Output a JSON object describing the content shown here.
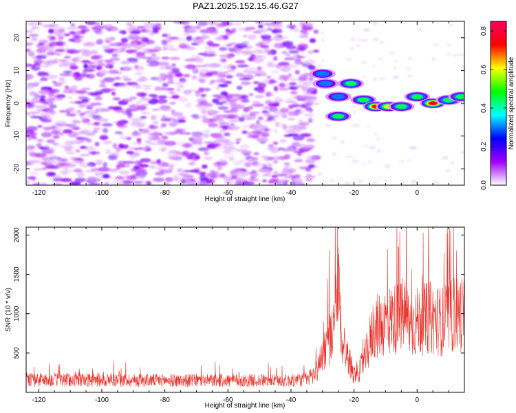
{
  "title": "PAZ1.2025.152.15.46.G27",
  "chart_data": [
    {
      "type": "heatmap",
      "xlabel": "Height of straight line (km)",
      "ylabel": "Frequency (Hz)",
      "xlim": [
        -124,
        15
      ],
      "ylim": [
        -25,
        25
      ],
      "x_ticks": [
        -120,
        -100,
        -80,
        -60,
        -40,
        -20,
        0
      ],
      "x_tick_labels": [
        "-120",
        "-100",
        "-80",
        "-60",
        "-40",
        "-20",
        "0"
      ],
      "y_ticks": [
        -20,
        -10,
        0,
        10,
        20
      ],
      "y_tick_labels": [
        "-20",
        "-10",
        "0",
        "10",
        "20"
      ],
      "colorbar": {
        "label": "Normalized spectral amplitude",
        "range": [
          0.0,
          0.85
        ],
        "ticks": [
          0.0,
          0.2,
          0.4,
          0.6,
          0.8
        ],
        "tick_labels": [
          "0.0",
          "0.2",
          "0.4",
          "0.6",
          "0.8"
        ]
      },
      "colormap": [
        "#ffffff",
        "#a000ff",
        "#0000ff",
        "#00ffff",
        "#00ff00",
        "#ffff00",
        "#ff0000",
        "#ff0060"
      ],
      "features": [
        {
          "x": -30,
          "y": 9,
          "value": 0.42
        },
        {
          "x": -29,
          "y": 6,
          "value": 0.35
        },
        {
          "x": -25,
          "y": 2,
          "value": 0.4
        },
        {
          "x": -25,
          "y": -4,
          "value": 0.45
        },
        {
          "x": -21,
          "y": 6,
          "value": 0.45
        },
        {
          "x": -17,
          "y": 1,
          "value": 0.45
        },
        {
          "x": -13,
          "y": -1,
          "value": 0.8
        },
        {
          "x": -9,
          "y": -1,
          "value": 0.6
        },
        {
          "x": -5,
          "y": -1,
          "value": 0.55
        },
        {
          "x": 0,
          "y": 2,
          "value": 0.55
        },
        {
          "x": 5,
          "y": 0,
          "value": 0.82
        },
        {
          "x": 10,
          "y": 1,
          "value": 0.45
        },
        {
          "x": 14,
          "y": 2,
          "value": 0.5
        }
      ]
    },
    {
      "type": "line",
      "xlabel": "Height of straight line (km)",
      "ylabel": "SNR (10 * v/v)",
      "xlim": [
        -124,
        15
      ],
      "ylim": [
        0,
        2100
      ],
      "x_ticks": [
        -120,
        -100,
        -80,
        -60,
        -40,
        -20,
        0
      ],
      "x_tick_labels": [
        "-120",
        "-100",
        "-80",
        "-60",
        "-40",
        "-20",
        "0"
      ],
      "y_ticks": [
        500,
        1000,
        1500,
        2000
      ],
      "y_tick_labels": [
        "500",
        "1000",
        "1500",
        "2000"
      ],
      "color": "#e8322a",
      "envelope": {
        "x": [
          -124,
          -110,
          -90,
          -70,
          -50,
          -40,
          -35,
          -32,
          -30,
          -28,
          -26,
          -25,
          -24,
          -22,
          -20,
          -18,
          -16,
          -14,
          -10,
          -6,
          -4,
          -2,
          0,
          4,
          8,
          12,
          15
        ],
        "y": [
          160,
          160,
          155,
          150,
          150,
          150,
          170,
          250,
          500,
          650,
          800,
          1300,
          700,
          450,
          230,
          300,
          500,
          800,
          900,
          950,
          1000,
          850,
          900,
          950,
          900,
          1000,
          1000
        ]
      },
      "spikes": [
        {
          "x": -25.2,
          "y": 2100
        },
        {
          "x": -25.8,
          "y": 1500
        },
        {
          "x": -24.7,
          "y": 1600
        },
        {
          "x": -5.9,
          "y": 1850
        },
        {
          "x": 12.5,
          "y": 1800
        }
      ]
    }
  ]
}
